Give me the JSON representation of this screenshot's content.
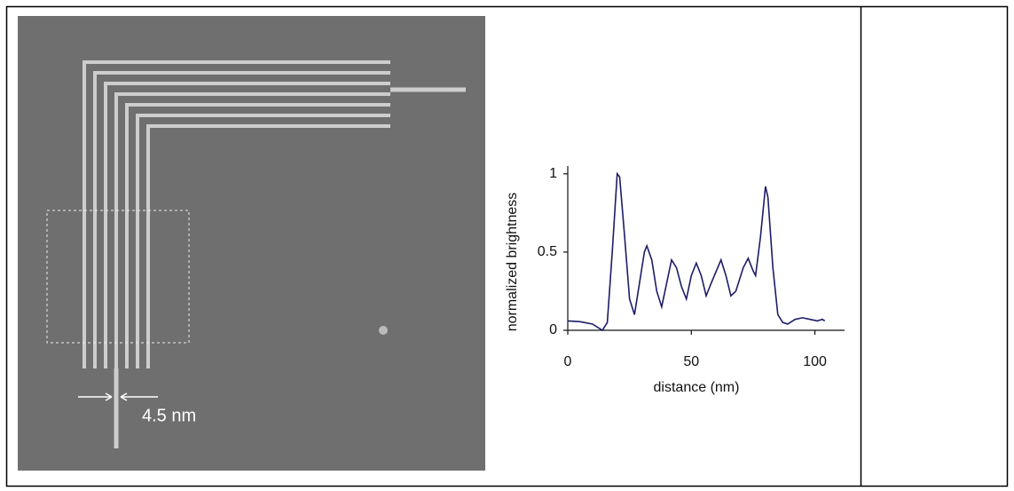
{
  "image": {
    "annotation": "4.5 nm"
  },
  "chart_data": {
    "type": "line",
    "x_label": "distance (nm)",
    "y_label": "normalized brightness",
    "x": [
      0,
      5,
      10,
      14,
      16,
      18,
      20,
      21,
      23,
      25,
      27,
      29,
      31,
      32,
      34,
      36,
      38,
      40,
      42,
      44,
      46,
      48,
      50,
      52,
      54,
      56,
      58,
      62,
      64,
      66,
      68,
      71,
      73,
      75,
      76,
      78,
      80,
      81,
      83,
      85,
      87,
      89,
      92,
      95,
      98,
      101,
      103,
      104
    ],
    "series": [
      {
        "color": "#1c1c66",
        "values": [
          0.06,
          0.055,
          0.04,
          0.0,
          0.05,
          0.5,
          1.0,
          0.98,
          0.6,
          0.2,
          0.1,
          0.3,
          0.5,
          0.54,
          0.45,
          0.25,
          0.15,
          0.3,
          0.45,
          0.4,
          0.28,
          0.2,
          0.35,
          0.43,
          0.35,
          0.22,
          0.3,
          0.45,
          0.35,
          0.22,
          0.25,
          0.4,
          0.46,
          0.38,
          0.35,
          0.6,
          0.92,
          0.85,
          0.4,
          0.1,
          0.05,
          0.04,
          0.07,
          0.08,
          0.07,
          0.06,
          0.07,
          0.06
        ]
      }
    ],
    "xlim": [
      0,
      112
    ],
    "ylim": [
      0,
      1.05
    ],
    "xticks": [
      0,
      50,
      100
    ],
    "yticks": [
      0,
      0.5,
      1
    ]
  }
}
